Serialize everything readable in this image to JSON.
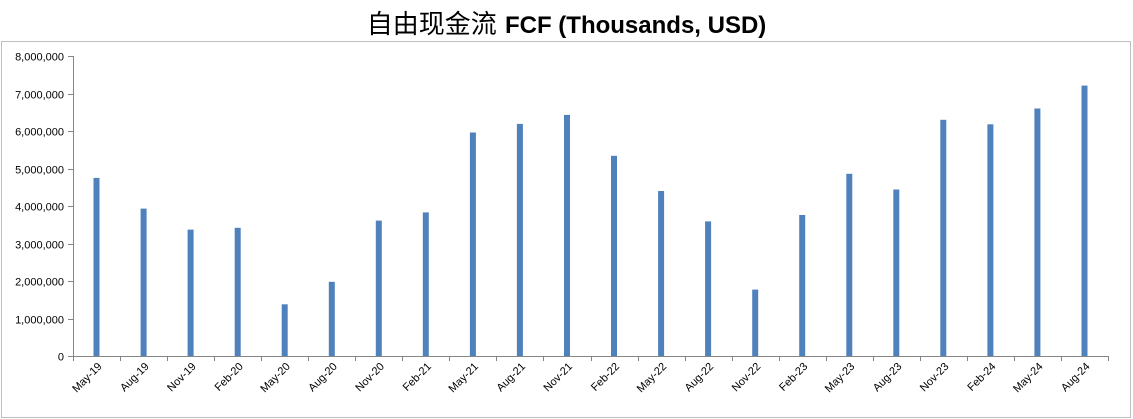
{
  "title_cn": "自由现金流",
  "title_en": "FCF (Thousands, USD)",
  "chart_data": {
    "type": "bar",
    "title": "自由现金流 FCF (Thousands, USD)",
    "xlabel": "",
    "ylabel": "",
    "ylim": [
      0,
      8000000
    ],
    "y_ticks": [
      0,
      1000000,
      2000000,
      3000000,
      4000000,
      5000000,
      6000000,
      7000000,
      8000000
    ],
    "y_tick_labels": [
      "0",
      "1,000,000",
      "2,000,000",
      "3,000,000",
      "4,000,000",
      "5,000,000",
      "6,000,000",
      "7,000,000",
      "8,000,000"
    ],
    "grid": false,
    "bar_color": "#4f81bd",
    "categories": [
      "May-19",
      "Aug-19",
      "Nov-19",
      "Feb-20",
      "May-20",
      "Aug-20",
      "Nov-20",
      "Feb-21",
      "May-21",
      "Aug-21",
      "Nov-21",
      "Feb-22",
      "May-22",
      "Aug-22",
      "Nov-22",
      "Feb-23",
      "May-23",
      "Aug-23",
      "Nov-23",
      "Feb-24",
      "May-24",
      "Aug-24"
    ],
    "values": [
      4750000,
      3930000,
      3370000,
      3420000,
      1380000,
      1980000,
      3610000,
      3830000,
      5960000,
      6190000,
      6430000,
      5340000,
      4400000,
      3590000,
      1770000,
      3760000,
      4860000,
      4440000,
      6300000,
      6180000,
      6600000,
      7210000
    ]
  }
}
